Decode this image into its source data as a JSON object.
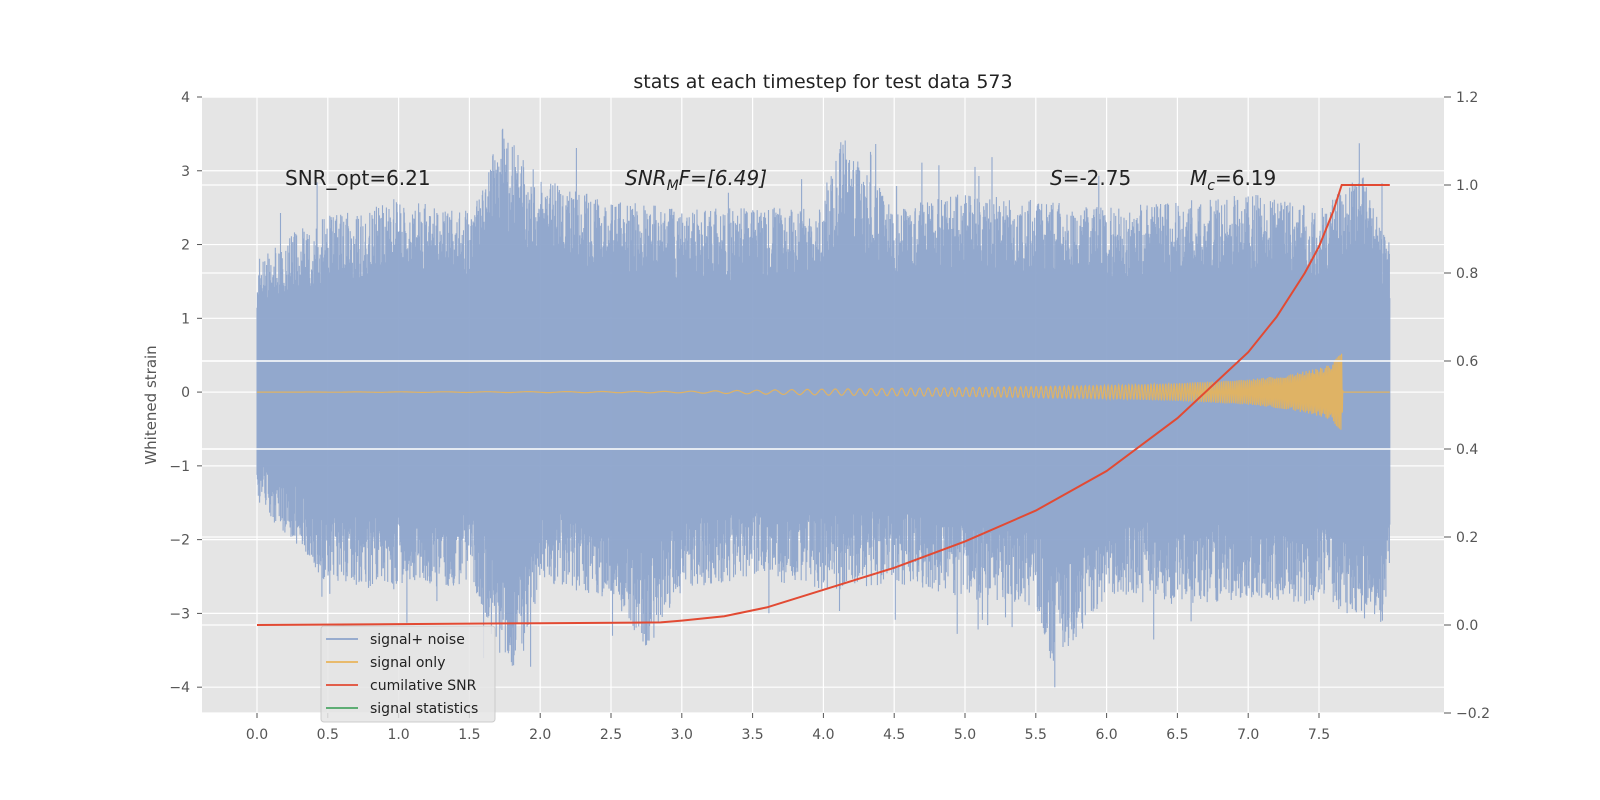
{
  "chart_data": {
    "type": "line",
    "title": "stats at each timestep for test data 573",
    "ylabel": "Whitened strain",
    "xlabel": "",
    "xlim": [
      -0.4,
      8.38
    ],
    "ylim": [
      -4.35,
      4.0
    ],
    "y2lim": [
      -0.2,
      1.2
    ],
    "xticks": [
      "0.0",
      "0.5",
      "1.0",
      "1.5",
      "2.0",
      "2.5",
      "3.0",
      "3.5",
      "4.0",
      "4.5",
      "5.0",
      "5.5",
      "6.0",
      "6.5",
      "7.0",
      "7.5"
    ],
    "yticks": [
      "4",
      "3",
      "2",
      "1",
      "0",
      "−1",
      "−2",
      "−3",
      "−4"
    ],
    "y2ticks": [
      "1.2",
      "1.0",
      "0.8",
      "0.6",
      "0.4",
      "0.2",
      "0.0",
      "−0.2"
    ],
    "grid": true,
    "legend_position": "lower-left",
    "annotations": {
      "snr_opt": "SNR_opt=6.21",
      "snr_mf_base": "SNR",
      "snr_mf_sub": "M",
      "snr_mf_tail": "F=[6.49]",
      "s_label": "S",
      "s_value": "=-2.75",
      "mc_base": "M",
      "mc_sub": "c",
      "mc_value": "=6.19"
    },
    "series": [
      {
        "name": "signal+ noise",
        "color": "#8da4cb",
        "description_range": [
          0,
          8.0
        ],
        "envelope_upper": [
          [
            0.0,
            1.9
          ],
          [
            0.5,
            2.4
          ],
          [
            1.0,
            2.6
          ],
          [
            1.5,
            2.5
          ],
          [
            1.73,
            3.6
          ],
          [
            2.0,
            2.9
          ],
          [
            2.5,
            2.6
          ],
          [
            3.0,
            2.5
          ],
          [
            3.5,
            2.5
          ],
          [
            4.0,
            2.5
          ],
          [
            4.12,
            3.5
          ],
          [
            4.5,
            2.5
          ],
          [
            5.0,
            2.7
          ],
          [
            5.5,
            2.6
          ],
          [
            6.0,
            2.5
          ],
          [
            6.5,
            2.6
          ],
          [
            7.0,
            2.7
          ],
          [
            7.5,
            2.5
          ],
          [
            7.8,
            3.0
          ],
          [
            8.0,
            2.0
          ]
        ],
        "envelope_lower": [
          [
            0.0,
            -1.5
          ],
          [
            0.5,
            -2.6
          ],
          [
            1.0,
            -2.7
          ],
          [
            1.5,
            -2.6
          ],
          [
            1.82,
            -4.0
          ],
          [
            2.0,
            -2.6
          ],
          [
            2.5,
            -2.8
          ],
          [
            2.75,
            -3.5
          ],
          [
            3.0,
            -2.7
          ],
          [
            3.5,
            -2.5
          ],
          [
            4.0,
            -2.7
          ],
          [
            4.5,
            -2.6
          ],
          [
            5.0,
            -2.8
          ],
          [
            5.5,
            -2.9
          ],
          [
            5.62,
            -3.8
          ],
          [
            6.0,
            -2.8
          ],
          [
            6.5,
            -2.9
          ],
          [
            7.0,
            -2.8
          ],
          [
            7.5,
            -2.9
          ],
          [
            7.95,
            -3.2
          ],
          [
            8.0,
            -2.3
          ]
        ]
      },
      {
        "name": "signal only",
        "color": "#e8b45a",
        "amplitude_envelope": [
          [
            0.0,
            0.0
          ],
          [
            3.0,
            0.01
          ],
          [
            4.0,
            0.04
          ],
          [
            5.0,
            0.06
          ],
          [
            6.0,
            0.09
          ],
          [
            6.5,
            0.12
          ],
          [
            7.0,
            0.17
          ],
          [
            7.3,
            0.24
          ],
          [
            7.55,
            0.35
          ],
          [
            7.66,
            0.52
          ],
          [
            7.67,
            0.0
          ],
          [
            8.0,
            0.0
          ]
        ]
      },
      {
        "name": "cumilative SNR",
        "color": "#e24a33",
        "axis": "right",
        "x": [
          0.0,
          1.0,
          2.0,
          2.85,
          3.0,
          3.3,
          3.6,
          4.0,
          4.5,
          5.0,
          5.5,
          6.0,
          6.5,
          7.0,
          7.2,
          7.4,
          7.5,
          7.6,
          7.66,
          7.7,
          8.0
        ],
        "y": [
          0.0,
          0.002,
          0.004,
          0.006,
          0.01,
          0.02,
          0.04,
          0.08,
          0.13,
          0.19,
          0.26,
          0.35,
          0.47,
          0.62,
          0.7,
          0.8,
          0.86,
          0.94,
          1.0,
          1.0,
          1.0
        ]
      },
      {
        "name": "signal statistics",
        "color": "#348abd",
        "legend_color": "#4aa564",
        "y_right_levels": [
          0.6,
          0.4
        ]
      }
    ]
  }
}
